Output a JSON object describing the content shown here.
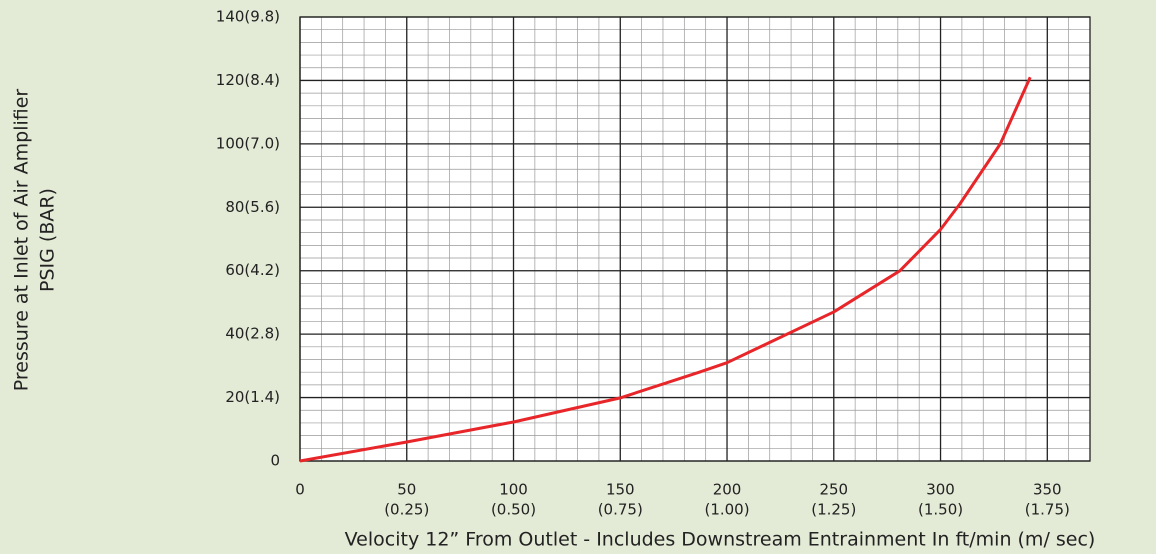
{
  "chart_data": {
    "type": "line",
    "x_label": "Velocity 12” From Outlet - Includes  Downstream Entrainment In ft/min (m/ sec)",
    "y_label": [
      "Pressure at Inlet of Air Amplifier",
      "PSIG (BAR)"
    ],
    "xlim": [
      0,
      370
    ],
    "ylim": [
      0,
      140
    ],
    "xticks": [
      0,
      50,
      100,
      150,
      200,
      250,
      300,
      350
    ],
    "xticks_secondary": [
      null,
      "(0.25)",
      "(0.50)",
      "(0.75)",
      "(1.00)",
      "(1.25)",
      "(1.50)",
      "(1.75)"
    ],
    "yticks": [
      0,
      {
        "value": 20,
        "label": "20(1.4)"
      },
      {
        "value": 40,
        "label": "40(2.8)"
      },
      {
        "value": 60,
        "label": "60(4.2)"
      },
      {
        "value": 80,
        "label": "80(5.6)"
      },
      {
        "value": 100,
        "label": "100(7.0)"
      },
      {
        "value": 120,
        "label": "120(8.4)"
      },
      {
        "value": 140,
        "label": "140(9.8)"
      }
    ],
    "grid": true,
    "series": [
      {
        "color": "#e8262a",
        "x": [
          0,
          50,
          100,
          150,
          187,
          200,
          250,
          281,
          300,
          309,
          328,
          342
        ],
        "values": [
          0,
          6,
          12.3,
          19.9,
          28,
          31,
          47,
          60,
          73,
          81,
          100,
          121
        ]
      }
    ]
  }
}
